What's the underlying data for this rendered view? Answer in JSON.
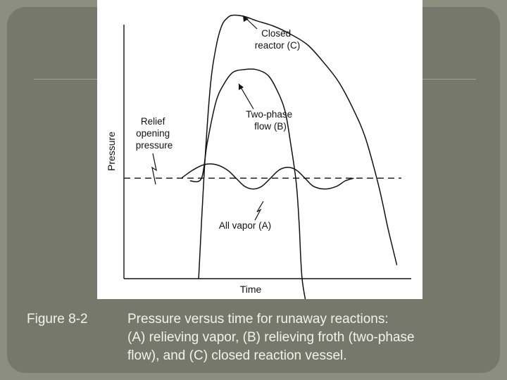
{
  "chart_data": {
    "type": "line",
    "title": "",
    "xlabel": "Time",
    "ylabel": "Pressure",
    "ticks": "none",
    "grid": false,
    "legend": "none",
    "reference_line": {
      "label": [
        "Relief",
        "opening",
        "pressure"
      ],
      "style": "dashed",
      "y": 0.37
    },
    "series": [
      {
        "name": "Closed reactor (C)",
        "label_lines": [
          "Closed",
          "reactor (C)"
        ],
        "x": [
          0.26,
          0.28,
          0.3,
          0.32,
          0.34,
          0.36,
          0.38,
          0.42,
          0.46,
          0.52,
          0.58,
          0.64,
          0.7,
          0.75,
          0.8,
          0.84,
          0.88,
          0.9,
          0.92,
          0.95
        ],
        "y": [
          0.0,
          0.4,
          0.7,
          0.85,
          0.93,
          0.96,
          0.97,
          0.965,
          0.95,
          0.93,
          0.9,
          0.86,
          0.79,
          0.72,
          0.62,
          0.52,
          0.37,
          0.28,
          0.18,
          0.05
        ]
      },
      {
        "name": "Two-phase flow (B)",
        "label_lines": [
          "Two-phase",
          "flow (B)"
        ],
        "x": [
          0.23,
          0.27,
          0.29,
          0.32,
          0.35,
          0.38,
          0.42,
          0.46,
          0.5,
          0.53,
          0.56,
          0.58,
          0.6,
          0.61,
          0.62,
          0.64
        ],
        "y": [
          0.36,
          0.37,
          0.5,
          0.65,
          0.72,
          0.76,
          0.77,
          0.77,
          0.75,
          0.7,
          0.62,
          0.5,
          0.35,
          0.2,
          0.0,
          -0.12
        ]
      },
      {
        "name": "All vapor (A)",
        "label_lines": [
          "All vapor (A)"
        ],
        "x": [
          0.2,
          0.24,
          0.28,
          0.32,
          0.36,
          0.39,
          0.42,
          0.45,
          0.48,
          0.51,
          0.54,
          0.57,
          0.6,
          0.63,
          0.66,
          0.7,
          0.74,
          0.77,
          0.8
        ],
        "y": [
          0.37,
          0.4,
          0.42,
          0.42,
          0.4,
          0.37,
          0.34,
          0.33,
          0.34,
          0.37,
          0.4,
          0.41,
          0.4,
          0.37,
          0.34,
          0.33,
          0.34,
          0.36,
          0.37
        ]
      }
    ]
  },
  "caption": {
    "label": "Figure 8-2",
    "lines": [
      "Pressure versus time for runaway reactions:",
      "(A) relieving vapor, (B) relieving froth (two-phase",
      "flow), and (C) closed reaction vessel."
    ]
  },
  "colors": {
    "background": "#8c8f7f",
    "frame": "#75786b",
    "figure_bg": "#ffffff",
    "ink": "#111111",
    "caption_text": "#f2f2ee"
  }
}
